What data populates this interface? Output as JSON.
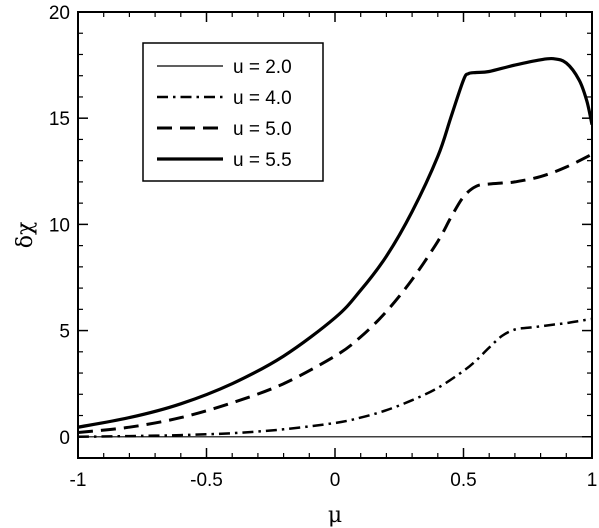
{
  "chart_data": {
    "type": "line",
    "xlabel": "μ",
    "ylabel": "δχ",
    "xlim": [
      -1,
      1
    ],
    "ylim": [
      -1,
      20
    ],
    "xticks": [
      -1,
      -0.5,
      0,
      0.5,
      1
    ],
    "xtick_labels": [
      "-1",
      "-0.5",
      "0",
      "0.5",
      "1"
    ],
    "yticks": [
      0,
      5,
      10,
      15,
      20
    ],
    "ytick_labels": [
      "0",
      "5",
      "10",
      "15",
      "20"
    ],
    "grid": false,
    "legend_position": "top-left",
    "series": [
      {
        "name": "u = 2.0",
        "style": "thin-solid",
        "color": "#000000",
        "x": [
          -1.0,
          1.0
        ],
        "y": [
          0.0,
          0.0
        ]
      },
      {
        "name": "u = 4.0",
        "style": "dash-dot",
        "color": "#000000",
        "x": [
          -1.0,
          -0.8,
          -0.6,
          -0.4,
          -0.2,
          0.0,
          0.1,
          0.2,
          0.3,
          0.4,
          0.5,
          0.55,
          0.6,
          0.65,
          0.7,
          0.75,
          0.8,
          0.85,
          0.9,
          0.95,
          1.0
        ],
        "y": [
          0.0,
          0.03,
          0.08,
          0.17,
          0.35,
          0.65,
          0.9,
          1.25,
          1.72,
          2.3,
          3.1,
          3.6,
          4.2,
          4.75,
          5.05,
          5.13,
          5.2,
          5.28,
          5.35,
          5.45,
          5.55
        ]
      },
      {
        "name": "u = 5.0",
        "style": "dashed",
        "color": "#000000",
        "x": [
          -1.0,
          -0.8,
          -0.6,
          -0.4,
          -0.2,
          0.0,
          0.1,
          0.2,
          0.3,
          0.4,
          0.45,
          0.5,
          0.55,
          0.6,
          0.65,
          0.7,
          0.8,
          0.9,
          1.0
        ],
        "y": [
          0.2,
          0.45,
          0.9,
          1.6,
          2.5,
          3.8,
          4.7,
          5.9,
          7.4,
          9.2,
          10.3,
          11.3,
          11.8,
          11.9,
          11.95,
          12.0,
          12.25,
          12.7,
          13.3
        ]
      },
      {
        "name": "u = 5.5",
        "style": "thick-solid",
        "color": "#000000",
        "x": [
          -1.0,
          -0.8,
          -0.6,
          -0.4,
          -0.2,
          0.0,
          0.1,
          0.2,
          0.3,
          0.4,
          0.45,
          0.5,
          0.52,
          0.55,
          0.6,
          0.7,
          0.8,
          0.85,
          0.9,
          0.95,
          0.98,
          1.0
        ],
        "y": [
          0.45,
          0.9,
          1.55,
          2.5,
          3.8,
          5.6,
          6.9,
          8.5,
          10.6,
          13.2,
          15.0,
          16.8,
          17.1,
          17.15,
          17.2,
          17.5,
          17.75,
          17.8,
          17.6,
          16.8,
          15.8,
          14.7
        ]
      }
    ]
  }
}
